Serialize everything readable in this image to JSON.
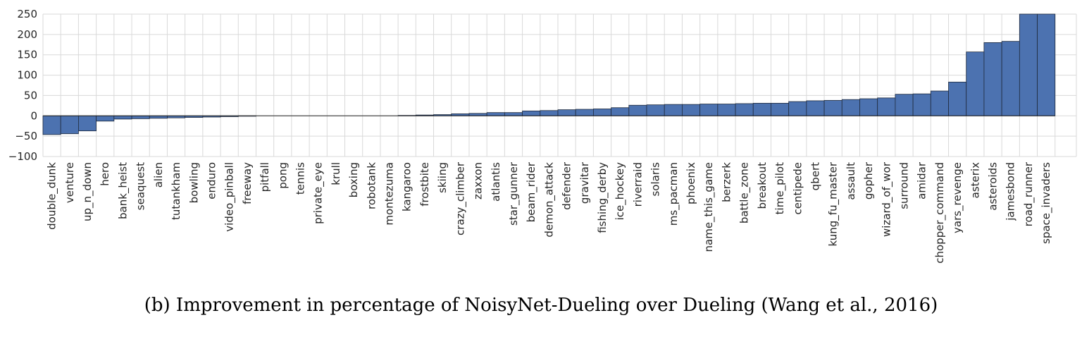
{
  "caption": "(b) Improvement in percentage of NoisyNet-Dueling over Dueling (Wang et al., 2016)",
  "colors": {
    "bar_fill": "#4c72b0",
    "bar_edge": "#1f2a3c",
    "grid": "#d9d9d9",
    "zero_line": "#222222"
  },
  "chart_data": {
    "type": "bar",
    "title": "",
    "xlabel": "",
    "ylabel": "",
    "ylim": [
      -100,
      250
    ],
    "yticks": [
      -100,
      -50,
      0,
      50,
      100,
      150,
      200,
      250
    ],
    "grid": true,
    "categories": [
      "double_dunk",
      "venture",
      "up_n_down",
      "hero",
      "bank_heist",
      "seaquest",
      "alien",
      "tutankham",
      "bowling",
      "enduro",
      "video_pinball",
      "freeway",
      "pitfall",
      "pong",
      "tennis",
      "private_eye",
      "krull",
      "boxing",
      "robotank",
      "montezuma",
      "kangaroo",
      "frostbite",
      "skiing",
      "crazy_climber",
      "zaxxon",
      "atlantis",
      "star_gunner",
      "beam_rider",
      "demon_attack",
      "defender",
      "gravitar",
      "fishing_derby",
      "ice_hockey",
      "riverraid",
      "solaris",
      "ms_pacman",
      "phoenix",
      "name_this_game",
      "berzerk",
      "battle_zone",
      "breakout",
      "time_pilot",
      "centipede",
      "qbert",
      "kung_fu_master",
      "assault",
      "gopher",
      "wizard_of_wor",
      "surround",
      "amidar",
      "chopper_command",
      "yars_revenge",
      "asterix",
      "asteroids",
      "jamesbond",
      "road_runner",
      "space_invaders"
    ],
    "values": [
      -46,
      -44,
      -37,
      -13,
      -8,
      -7,
      -6,
      -5,
      -4,
      -3,
      -2,
      -1,
      0,
      0,
      0,
      0,
      0,
      0,
      0,
      0,
      1,
      2,
      3,
      5,
      6,
      8,
      8,
      12,
      13,
      15,
      16,
      17,
      20,
      26,
      27,
      28,
      28,
      29,
      29,
      30,
      31,
      31,
      35,
      37,
      38,
      40,
      42,
      44,
      53,
      54,
      61,
      83,
      157,
      180,
      183,
      250,
      250
    ]
  }
}
